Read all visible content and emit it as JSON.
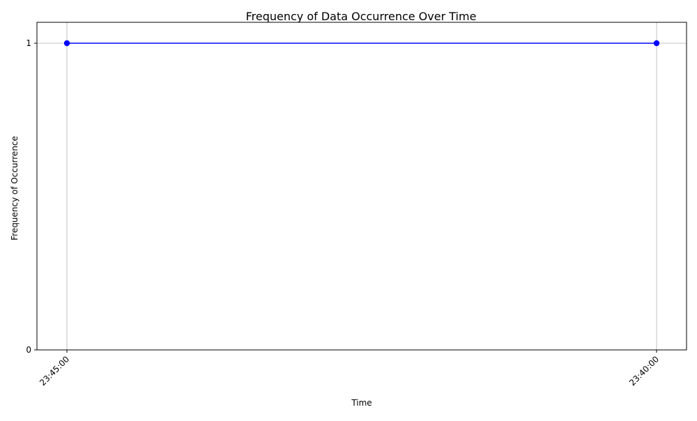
{
  "chart_data": {
    "type": "line",
    "title": "Frequency of Data Occurrence Over Time",
    "xlabel": "Time",
    "ylabel": "Frequency of Occurrence",
    "categories": [
      "23:45:00",
      "23:40:00"
    ],
    "series": [
      {
        "values": [
          1,
          1
        ],
        "color": "#0000ff",
        "marker": "circle"
      }
    ],
    "ylim": [
      0,
      1
    ],
    "yticks": [
      0,
      1
    ],
    "grid": "x-and-top-y",
    "grid_color": "#b0b0b0",
    "xtick_rotation": 45
  }
}
